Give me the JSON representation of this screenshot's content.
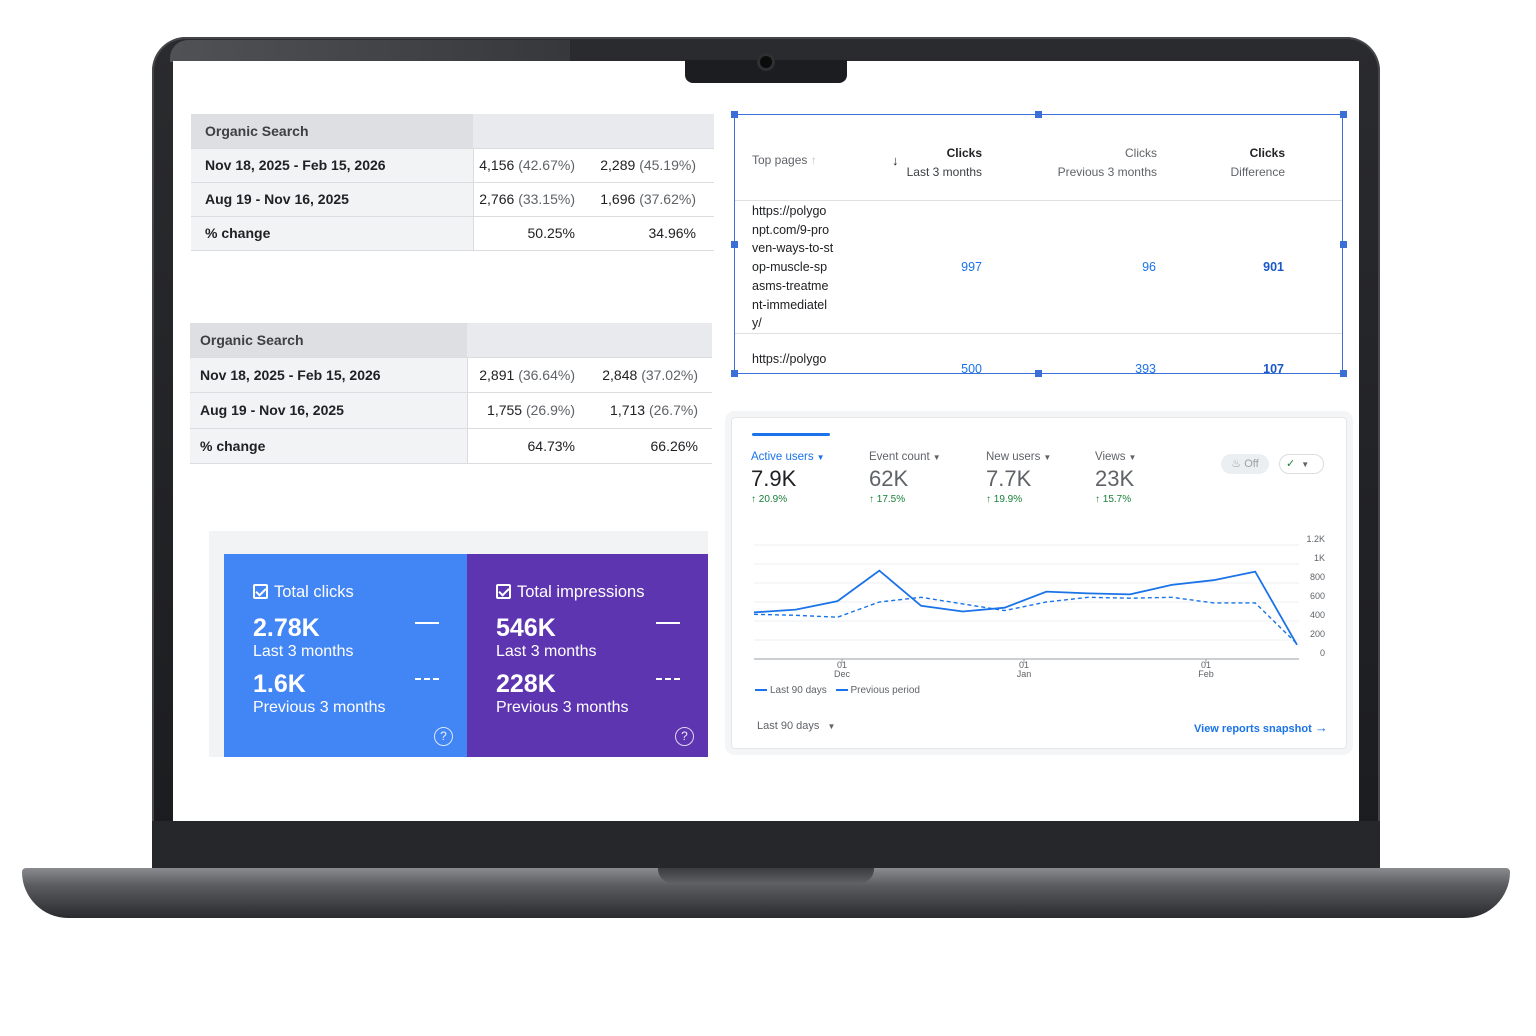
{
  "organic_tables": [
    {
      "header": "Organic Search",
      "rows": [
        {
          "label": "Nov 18, 2025 - Feb 15, 2026",
          "c1": "4,156",
          "c1p": "(42.67%)",
          "c2": "2,289",
          "c2p": "(45.19%)"
        },
        {
          "label": "Aug 19 - Nov 16, 2025",
          "c1": "2,766",
          "c1p": "(33.15%)",
          "c2": "1,696",
          "c2p": "(37.62%)"
        },
        {
          "label": "% change",
          "c1": "50.25%",
          "c1p": "",
          "c2": "34.96%",
          "c2p": ""
        }
      ]
    },
    {
      "header": "Organic Search",
      "rows": [
        {
          "label": "Nov 18, 2025 - Feb 15, 2026",
          "c1": "2,891",
          "c1p": "(36.64%)",
          "c2": "2,848",
          "c2p": "(37.02%)"
        },
        {
          "label": "Aug 19 - Nov 16, 2025",
          "c1": "1,755",
          "c1p": "(26.9%)",
          "c2": "1,713",
          "c2p": "(26.7%)"
        },
        {
          "label": "% change",
          "c1": "64.73%",
          "c1p": "",
          "c2": "66.26%",
          "c2p": ""
        }
      ]
    }
  ],
  "top_pages": {
    "header_label": "Top pages",
    "sort_up_icon": "↑",
    "sort_down_icon": "↓",
    "col1": {
      "a": "Clicks",
      "b": "Last 3 months"
    },
    "col2": {
      "a": "Clicks",
      "b": "Previous 3 months"
    },
    "col3": {
      "a": "Clicks",
      "b": "Difference"
    },
    "rows": [
      {
        "url_lines": [
          "https://polygo",
          "npt.com/9-pro",
          "ven-ways-to-st",
          "op-muscle-sp",
          "asms-treatme",
          "nt-immediatel",
          "y/"
        ],
        "v1": "997",
        "v2": "96",
        "v3": "901"
      },
      {
        "url_lines": [
          "https://polygo"
        ],
        "v1": "500",
        "v2": "393",
        "v3": "107"
      }
    ]
  },
  "ga": {
    "metrics": [
      {
        "label": "Active users",
        "value": "7.9K",
        "change": "↑ 20.9%",
        "active": true
      },
      {
        "label": "Event count",
        "value": "62K",
        "change": "↑ 17.5%",
        "active": false
      },
      {
        "label": "New users",
        "value": "7.7K",
        "change": "↑ 19.9%",
        "active": false
      },
      {
        "label": "Views",
        "value": "23K",
        "change": "↑ 15.7%",
        "active": false
      }
    ],
    "off_label": "Off",
    "off_icon": "fire-icon",
    "check_icon": "✓",
    "legend_current": "Last 90 days",
    "legend_previous": "Previous period",
    "date_range": "Last 90 days",
    "view_link": "View reports snapshot",
    "colors": {
      "accent": "#1a73e8",
      "positive": "#188038"
    }
  },
  "chart_data": {
    "type": "line",
    "y_ticks": [
      "1.2K",
      "1K",
      "800",
      "600",
      "400",
      "200",
      "0"
    ],
    "ylim": [
      0,
      1200
    ],
    "x_ticks": [
      {
        "day": "01",
        "month": "Dec"
      },
      {
        "day": "01",
        "month": "Jan"
      },
      {
        "day": "01",
        "month": "Feb"
      }
    ],
    "series": [
      {
        "name": "Last 90 days",
        "style": "solid",
        "values": [
          490,
          520,
          610,
          930,
          560,
          500,
          540,
          710,
          690,
          680,
          780,
          830,
          920,
          150
        ]
      },
      {
        "name": "Previous period",
        "style": "dashed",
        "values": [
          470,
          460,
          440,
          600,
          650,
          580,
          510,
          600,
          650,
          640,
          650,
          590,
          590,
          160
        ]
      }
    ]
  },
  "performance": [
    {
      "title": "Total clicks",
      "v1": "2.78K",
      "s1": "Last 3 months",
      "v2": "1.6K",
      "s2": "Previous 3 months",
      "color": "#4285f4"
    },
    {
      "title": "Total impressions",
      "v1": "546K",
      "s1": "Last 3 months",
      "v2": "228K",
      "s2": "Previous 3 months",
      "color": "#5e35b1"
    }
  ],
  "help_icon": "?"
}
